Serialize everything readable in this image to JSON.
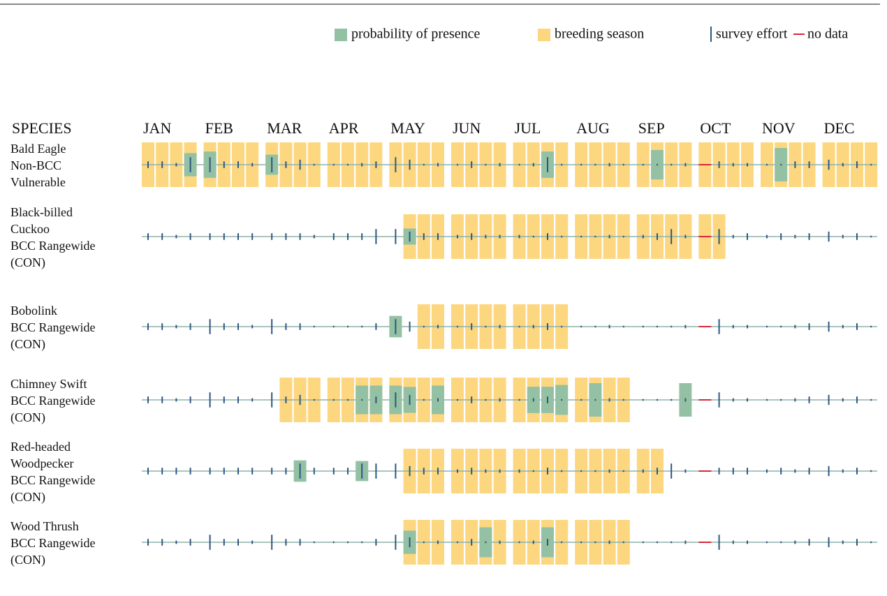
{
  "chart_data": {
    "type": "presence",
    "legend": [
      {
        "name": "probability of presence",
        "color": "#94c1a3"
      },
      {
        "name": "breeding season",
        "color": "#fcd77f"
      },
      {
        "name": "survey effort",
        "color": "#2b5784"
      },
      {
        "name": "no data",
        "color": "#d9263a"
      }
    ],
    "species_header": "SPECIES",
    "months": [
      "JAN",
      "FEB",
      "MAR",
      "APR",
      "MAY",
      "JUN",
      "JUL",
      "AUG",
      "SEP",
      "OCT",
      "NOV",
      "DEC"
    ],
    "probability_lim": [
      0,
      10
    ],
    "effort_lim": [
      0,
      10
    ],
    "species": [
      {
        "label": [
          "Bald Eagle",
          "Non-BCC",
          "Vulnerable"
        ],
        "probability": [
          0,
          0,
          0,
          5.2,
          5.9,
          0,
          0,
          0,
          4.5,
          0,
          0,
          0,
          0,
          0,
          0,
          0,
          0,
          0,
          0,
          0,
          0,
          0,
          0,
          0,
          0,
          0,
          5.9,
          0,
          0,
          0,
          0,
          0,
          0,
          6.6,
          0,
          0,
          0,
          0,
          0,
          0,
          0,
          7.5,
          0,
          0,
          0,
          0,
          0,
          0
        ],
        "effort": [
          4,
          4,
          2,
          9,
          9,
          4,
          4,
          2,
          9,
          4,
          6,
          1,
          1,
          1,
          2,
          4,
          9,
          6,
          1,
          2,
          1,
          4,
          1,
          2,
          1,
          2,
          9,
          1,
          1,
          1,
          2,
          1,
          1,
          1,
          1,
          2,
          null,
          4,
          2,
          2,
          1,
          1,
          4,
          4,
          6,
          2,
          4,
          1
        ],
        "breeding": [
          true,
          true,
          true,
          true,
          true,
          true,
          true,
          true,
          true,
          true,
          true,
          true,
          true,
          true,
          true,
          true,
          true,
          true,
          true,
          true,
          true,
          true,
          true,
          true,
          true,
          true,
          true,
          true,
          true,
          true,
          true,
          true,
          true,
          true,
          true,
          true,
          true,
          true,
          true,
          true,
          true,
          true,
          true,
          true,
          true,
          true,
          true,
          true
        ]
      },
      {
        "label": [
          "Black-billed",
          "Cuckoo",
          "BCC Rangewide",
          "(CON)"
        ],
        "probability": [
          0,
          0,
          0,
          0,
          0,
          0,
          0,
          0,
          0,
          0,
          0,
          0,
          0,
          0,
          0,
          0,
          0,
          3.6,
          0,
          0,
          0,
          0,
          0,
          0,
          0,
          0,
          0,
          0,
          0,
          0,
          0,
          0,
          0,
          0,
          0,
          0,
          0,
          0,
          0,
          0,
          0,
          0,
          0,
          0,
          0,
          0,
          0,
          0
        ],
        "effort": [
          4,
          4,
          2,
          4,
          4,
          4,
          4,
          4,
          4,
          4,
          4,
          2,
          4,
          4,
          4,
          9,
          9,
          6,
          4,
          4,
          2,
          4,
          2,
          2,
          2,
          1,
          4,
          1,
          1,
          1,
          2,
          1,
          2,
          4,
          9,
          2,
          null,
          9,
          2,
          4,
          2,
          4,
          2,
          4,
          6,
          2,
          4,
          1
        ],
        "breeding": [
          false,
          false,
          false,
          false,
          false,
          false,
          false,
          false,
          false,
          false,
          false,
          false,
          false,
          false,
          false,
          false,
          false,
          true,
          true,
          true,
          true,
          true,
          true,
          true,
          true,
          true,
          true,
          true,
          true,
          true,
          true,
          true,
          true,
          true,
          true,
          true,
          true,
          true,
          false,
          false,
          false,
          false,
          false,
          false,
          false,
          false,
          false,
          false
        ]
      },
      {
        "label": [
          "Bobolink",
          "BCC Rangewide",
          "(CON)"
        ],
        "probability": [
          0,
          0,
          0,
          0,
          0,
          0,
          0,
          0,
          0,
          0,
          0,
          0,
          0,
          0,
          0,
          0,
          4.8,
          0,
          0,
          0,
          0,
          0,
          0,
          0,
          0,
          0,
          0,
          0,
          0,
          0,
          0,
          0,
          0,
          0,
          0,
          0,
          0,
          0,
          0,
          0,
          0,
          0,
          0,
          0,
          0,
          0,
          0,
          0
        ],
        "effort": [
          4,
          4,
          2,
          4,
          9,
          4,
          4,
          2,
          9,
          4,
          4,
          1,
          1,
          1,
          1,
          4,
          9,
          6,
          1,
          2,
          1,
          4,
          1,
          2,
          1,
          2,
          4,
          1,
          1,
          1,
          2,
          1,
          1,
          1,
          1,
          2,
          null,
          9,
          2,
          2,
          1,
          1,
          2,
          4,
          6,
          2,
          4,
          1
        ],
        "breeding": [
          false,
          false,
          false,
          false,
          false,
          false,
          false,
          false,
          false,
          false,
          false,
          false,
          false,
          false,
          false,
          false,
          false,
          false,
          true,
          true,
          true,
          true,
          true,
          true,
          true,
          true,
          true,
          true,
          false,
          false,
          false,
          false,
          false,
          false,
          false,
          false,
          false,
          false,
          false,
          false,
          false,
          false,
          false,
          false,
          false,
          false,
          false,
          false
        ]
      },
      {
        "label": [
          "Chimney Swift",
          "BCC Rangewide",
          "(CON)"
        ],
        "probability": [
          0,
          0,
          0,
          0,
          0,
          0,
          0,
          0,
          0,
          0,
          0,
          0,
          0,
          0,
          6.4,
          6.4,
          6.4,
          5.8,
          0,
          6.4,
          0,
          0,
          0,
          0,
          0,
          5.9,
          5.9,
          6.7,
          0,
          7.5,
          0,
          0,
          0,
          0,
          0,
          7.5,
          0,
          0,
          0,
          0,
          0,
          0,
          0,
          0,
          0,
          0,
          0,
          0
        ],
        "effort": [
          4,
          4,
          2,
          4,
          9,
          4,
          4,
          2,
          9,
          4,
          6,
          1,
          1,
          1,
          1,
          4,
          9,
          6,
          1,
          2,
          1,
          4,
          1,
          2,
          1,
          2,
          4,
          1,
          1,
          1,
          2,
          1,
          1,
          1,
          1,
          2,
          null,
          9,
          2,
          2,
          1,
          1,
          2,
          4,
          6,
          2,
          4,
          1
        ],
        "breeding": [
          false,
          false,
          false,
          false,
          false,
          false,
          false,
          false,
          false,
          true,
          true,
          true,
          true,
          true,
          true,
          true,
          true,
          true,
          true,
          true,
          true,
          true,
          true,
          true,
          true,
          true,
          true,
          true,
          true,
          true,
          true,
          true,
          false,
          false,
          false,
          false,
          false,
          false,
          false,
          false,
          false,
          false,
          false,
          false,
          false,
          false,
          false,
          false
        ]
      },
      {
        "label": [
          "Red-headed",
          "Woodpecker",
          "BCC Rangewide",
          "(CON)"
        ],
        "probability": [
          0,
          0,
          0,
          0,
          0,
          0,
          0,
          0,
          0,
          0,
          4.8,
          0,
          0,
          0,
          4.5,
          0,
          0,
          0,
          0,
          0,
          0,
          0,
          0,
          0,
          0,
          0,
          0,
          0,
          0,
          0,
          0,
          0,
          0,
          0,
          0,
          0,
          0,
          0,
          0,
          0,
          0,
          0,
          0,
          0,
          0,
          0,
          0,
          0
        ],
        "effort": [
          4,
          4,
          4,
          4,
          4,
          4,
          4,
          4,
          4,
          4,
          9,
          4,
          4,
          4,
          9,
          9,
          9,
          6,
          4,
          4,
          2,
          4,
          2,
          2,
          2,
          1,
          4,
          1,
          1,
          1,
          2,
          1,
          2,
          4,
          9,
          2,
          null,
          4,
          4,
          4,
          2,
          4,
          2,
          4,
          6,
          2,
          4,
          1
        ],
        "breeding": [
          false,
          false,
          false,
          false,
          false,
          false,
          false,
          false,
          false,
          false,
          false,
          false,
          false,
          false,
          false,
          false,
          false,
          true,
          true,
          true,
          true,
          true,
          true,
          true,
          true,
          true,
          true,
          true,
          true,
          true,
          true,
          true,
          true,
          true,
          false,
          false,
          false,
          false,
          false,
          false,
          false,
          false,
          false,
          false,
          false,
          false,
          false,
          false
        ]
      },
      {
        "label": [
          "Wood Thrush",
          "BCC Rangewide",
          "(CON)"
        ],
        "probability": [
          0,
          0,
          0,
          0,
          0,
          0,
          0,
          0,
          0,
          0,
          0,
          0,
          0,
          0,
          0,
          0,
          0,
          5.2,
          0,
          0,
          0,
          0,
          6.7,
          0,
          0,
          0,
          6.7,
          0,
          0,
          0,
          0,
          0,
          0,
          0,
          0,
          0,
          0,
          0,
          0,
          0,
          0,
          0,
          0,
          0,
          0,
          0,
          0,
          0
        ],
        "effort": [
          4,
          4,
          2,
          4,
          9,
          4,
          4,
          2,
          9,
          4,
          4,
          1,
          1,
          1,
          1,
          4,
          9,
          6,
          1,
          2,
          1,
          4,
          1,
          2,
          1,
          2,
          4,
          1,
          1,
          1,
          2,
          1,
          1,
          1,
          1,
          2,
          null,
          9,
          2,
          2,
          1,
          1,
          2,
          4,
          6,
          2,
          4,
          1
        ],
        "breeding": [
          false,
          false,
          false,
          false,
          false,
          false,
          false,
          false,
          false,
          false,
          false,
          false,
          false,
          false,
          false,
          false,
          false,
          true,
          true,
          true,
          true,
          true,
          true,
          true,
          true,
          true,
          true,
          true,
          true,
          true,
          true,
          true,
          false,
          false,
          false,
          false,
          false,
          false,
          false,
          false,
          false,
          false,
          false,
          false,
          false,
          false,
          false,
          false
        ]
      }
    ]
  }
}
